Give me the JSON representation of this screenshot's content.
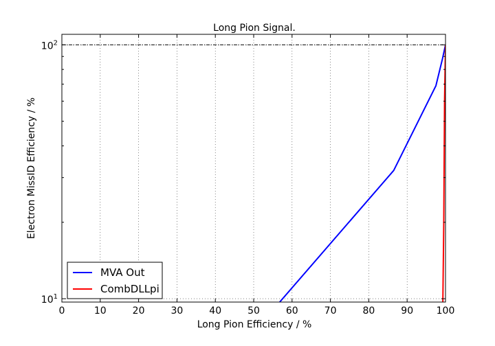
{
  "chart_data": {
    "type": "line",
    "title": "Long Pion Signal.",
    "xlabel": "Long Pion Efficiency / %",
    "ylabel": "Electron MissID Efficiency / %",
    "xlim": [
      0,
      100
    ],
    "ylim": [
      9.7,
      110
    ],
    "y_scale": "log",
    "x_ticks": [
      0,
      10,
      20,
      30,
      40,
      50,
      60,
      70,
      80,
      90,
      100
    ],
    "x_tick_labels": [
      "0",
      "10",
      "20",
      "30",
      "40",
      "50",
      "60",
      "70",
      "80",
      "90",
      "100"
    ],
    "y_ticks": [
      10,
      100
    ],
    "y_tick_labels": [
      {
        "base": "10",
        "exp": "1"
      },
      {
        "base": "10",
        "exp": "2"
      }
    ],
    "grid": true,
    "reference_line_y": 100,
    "legend_position": "bottom-left",
    "series": [
      {
        "name": "MVA Out",
        "color": "#0000ff",
        "x": [
          56.0,
          86.5,
          97.5,
          99.2,
          100.0
        ],
        "y": [
          9.4,
          32.0,
          69.0,
          88.0,
          100.0
        ]
      },
      {
        "name": "CombDLLpi",
        "color": "#ff0000",
        "x": [
          99.3,
          99.55,
          99.75,
          100.0
        ],
        "y": [
          9.4,
          20.0,
          60.0,
          100.0
        ]
      }
    ]
  }
}
